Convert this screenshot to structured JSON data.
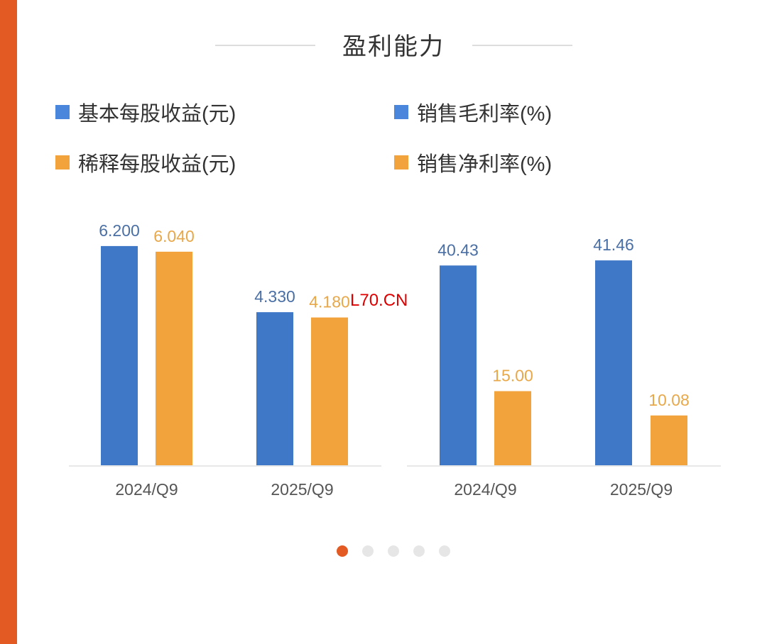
{
  "title": "盈利能力",
  "watermark": "L70.CN",
  "colors": {
    "blue": "#4078c8",
    "orange": "#f2a33c",
    "accent": "#e35a22"
  },
  "pagination": {
    "total": 5,
    "active": 0
  },
  "chart_data": [
    {
      "type": "bar",
      "categories": [
        "2024/Q9",
        "2025/Q9"
      ],
      "series": [
        {
          "name": "基本每股收益(元)",
          "values": [
            6.2,
            4.33
          ],
          "labels": [
            "6.200",
            "4.330"
          ],
          "color": "#4078c8"
        },
        {
          "name": "稀释每股收益(元)",
          "values": [
            6.04,
            4.18
          ],
          "labels": [
            "6.040",
            "4.180"
          ],
          "color": "#f2a33c"
        }
      ],
      "ylim": [
        0,
        6.82
      ],
      "grid": false
    },
    {
      "type": "bar",
      "categories": [
        "2024/Q9",
        "2025/Q9"
      ],
      "series": [
        {
          "name": "销售毛利率(%)",
          "values": [
            40.43,
            41.46
          ],
          "labels": [
            "40.43",
            "41.46"
          ],
          "color": "#4078c8"
        },
        {
          "name": "销售净利率(%)",
          "values": [
            15.0,
            10.08
          ],
          "labels": [
            "15.00",
            "10.08"
          ],
          "color": "#f2a33c"
        }
      ],
      "ylim": [
        0,
        48.8
      ],
      "grid": false
    }
  ]
}
